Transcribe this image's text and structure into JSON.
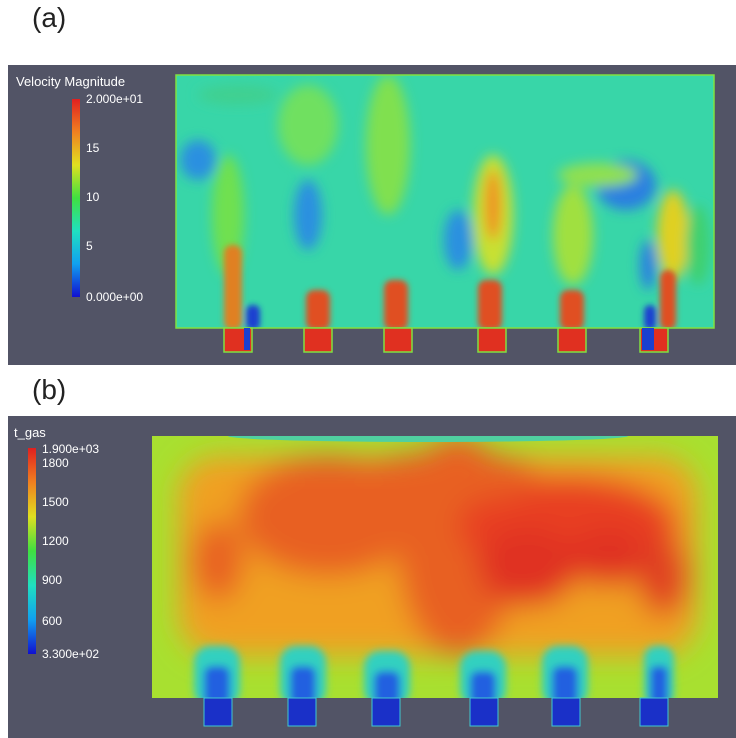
{
  "figure": {
    "panel_a": {
      "label": "(a)",
      "legend": {
        "title": "Velocity Magnitude",
        "max_label": "2.000e+01",
        "min_label": "0.000e+00",
        "ticks": [
          "15",
          "10",
          "5"
        ],
        "range": [
          0,
          20
        ]
      }
    },
    "panel_b": {
      "label": "(b)",
      "legend": {
        "title": "t_gas",
        "max_label": "1.900e+03",
        "min_label": "3.300e+02",
        "ticks": [
          "1800",
          "1500",
          "1200",
          "900",
          "600"
        ],
        "range": [
          330,
          1900
        ]
      }
    },
    "colors": {
      "background": "#525466",
      "colormap": [
        "#1010d0",
        "#10a0f0",
        "#20e0c0",
        "#40e040",
        "#e0e020",
        "#f08020",
        "#e02020"
      ]
    },
    "burner_count": 6
  }
}
